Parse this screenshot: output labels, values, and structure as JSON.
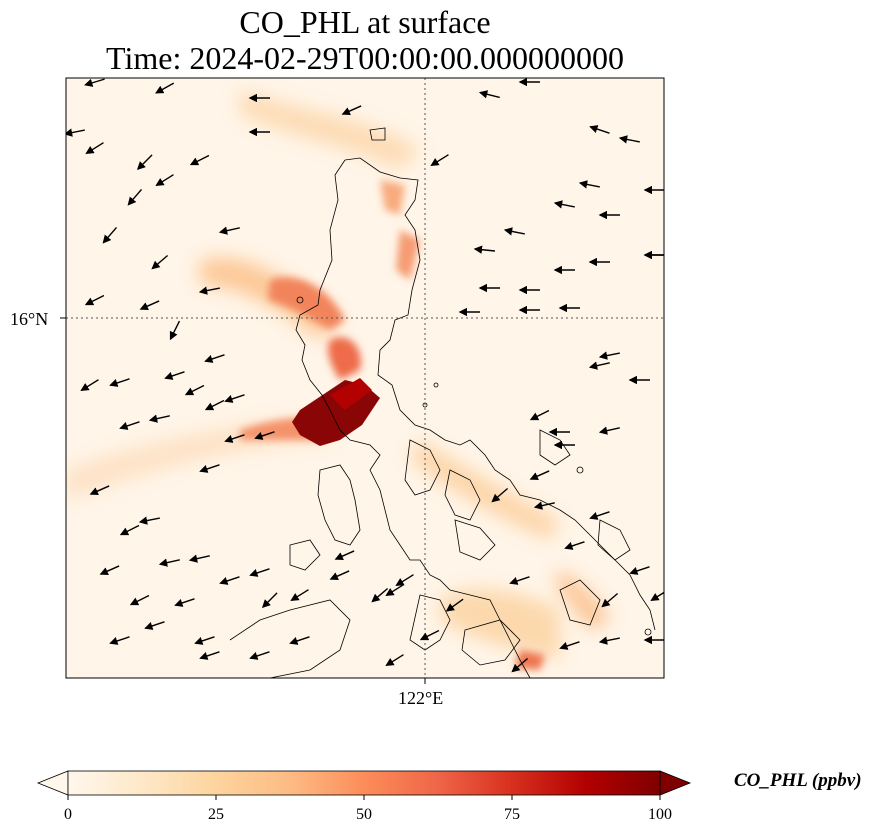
{
  "title": {
    "line1": "CO_PHL at surface",
    "line2": "Time: 2024-02-29T00:00:00.000000000"
  },
  "axes": {
    "lat_label": "16°N",
    "lon_label": "122°E"
  },
  "colorbar": {
    "label": "CO_PHL (ppbv)",
    "ticks": [
      "0",
      "25",
      "50",
      "75",
      "100"
    ],
    "range": [
      0,
      100
    ],
    "extend": "both",
    "colormap": "OrRd",
    "colors": [
      "#fff7ec",
      "#fee8c8",
      "#fdd49e",
      "#fdbb84",
      "#fc8d59",
      "#ef6548",
      "#d7301f",
      "#b30000",
      "#7f0000"
    ]
  },
  "map": {
    "region": "Luzon, Philippines",
    "gridlines": "dotted",
    "features": [
      "coastline",
      "wind-vectors",
      "CO-concentration-field"
    ]
  }
}
